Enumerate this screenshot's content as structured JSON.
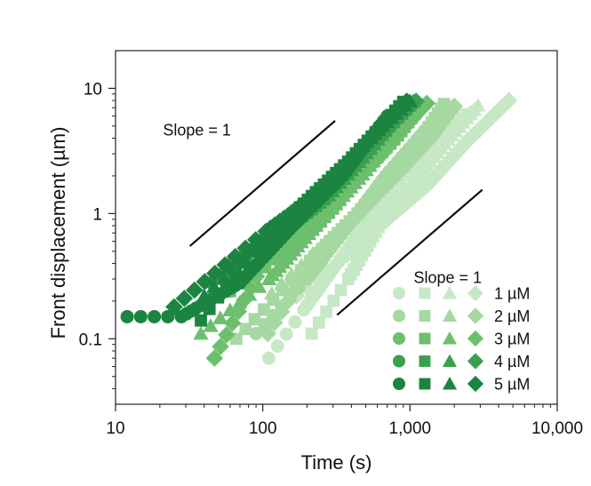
{
  "chart_data": {
    "type": "scatter",
    "xscale": "log",
    "yscale": "log",
    "xlim": [
      10,
      10000
    ],
    "ylim": [
      0.03,
      20
    ],
    "xlabel": "Time (s)",
    "ylabel": "Front displacement (µm)",
    "xticks": [
      {
        "value": 10,
        "label": "10"
      },
      {
        "value": 100,
        "label": "100"
      },
      {
        "value": 1000,
        "label": "1,000"
      },
      {
        "value": 10000,
        "label": "10,000"
      }
    ],
    "yticks": [
      {
        "value": 0.1,
        "label": "0.1"
      },
      {
        "value": 1,
        "label": "1"
      },
      {
        "value": 10,
        "label": "10"
      }
    ],
    "annotations": [
      {
        "text": "Slope = 1",
        "x": 21,
        "y": 4.2
      },
      {
        "text": "Slope = 1",
        "x": 1060,
        "y": 0.28
      }
    ],
    "reference_lines": [
      {
        "x": [
          32,
          310
        ],
        "y": [
          0.55,
          5.5
        ]
      },
      {
        "x": [
          320,
          3100
        ],
        "y": [
          0.155,
          1.55
        ]
      }
    ],
    "legend_position": "bottom-right",
    "marker_types": [
      "circle",
      "square",
      "triangle",
      "diamond"
    ],
    "series": [
      {
        "name": "1 µM",
        "color": "#c7e8c4",
        "circle": {
          "x": [
            110,
            190,
            450,
            860,
            1620,
            2680
          ],
          "y": [
            0.07,
            0.17,
            0.7,
            1.9,
            3.8,
            6.5
          ]
        },
        "square": {
          "x": [
            215,
            380,
            640,
            1050,
            1520,
            2400
          ],
          "y": [
            0.11,
            0.3,
            0.85,
            1.7,
            3.2,
            6.2
          ]
        },
        "triangle": {
          "x": [
            160,
            320,
            590,
            1050,
            1720,
            2900
          ],
          "y": [
            0.25,
            0.42,
            0.85,
            1.75,
            3.6,
            7.3
          ]
        },
        "diamond": {
          "x": [
            170,
            380,
            700,
            1320,
            2400,
            4700
          ],
          "y": [
            0.22,
            0.48,
            0.9,
            1.7,
            3.7,
            8.0
          ]
        }
      },
      {
        "name": "2 µM",
        "color": "#a6d8a1",
        "circle": {
          "x": [
            90,
            200,
            380,
            680,
            1050,
            1680
          ],
          "y": [
            0.11,
            0.3,
            0.8,
            2.0,
            3.6,
            6.8
          ]
        },
        "square": {
          "x": [
            66,
            210,
            440,
            760,
            1160,
            1700
          ],
          "y": [
            0.1,
            0.42,
            1.0,
            2.1,
            3.8,
            7.5
          ]
        },
        "triangle": {
          "x": [
            115,
            250,
            500,
            880,
            1300,
            1900
          ],
          "y": [
            0.23,
            0.55,
            1.2,
            2.4,
            4.2,
            7.0
          ]
        },
        "diamond": {
          "x": [
            108,
            230,
            480,
            860,
            1380,
            2000
          ],
          "y": [
            0.11,
            0.45,
            1.1,
            2.2,
            4.0,
            7.2
          ]
        }
      },
      {
        "name": "3 µM",
        "color": "#6dbf6e",
        "circle": {
          "x": [
            60,
            120,
            240,
            420,
            700,
            1100
          ],
          "y": [
            0.24,
            0.45,
            0.9,
            2.0,
            3.8,
            7.0
          ]
        },
        "square": {
          "x": [
            60,
            150,
            300,
            520,
            830,
            1200
          ],
          "y": [
            0.24,
            0.5,
            1.1,
            2.4,
            4.2,
            7.4
          ]
        },
        "triangle": {
          "x": [
            38,
            110,
            230,
            450,
            750,
            1150
          ],
          "y": [
            0.11,
            0.3,
            0.8,
            1.9,
            3.9,
            7.2
          ]
        },
        "diamond": {
          "x": [
            47,
            120,
            250,
            480,
            780,
            1300
          ],
          "y": [
            0.07,
            0.6,
            1.0,
            2.1,
            4.0,
            7.6
          ]
        }
      },
      {
        "name": "4 µM",
        "color": "#3aa050",
        "circle": {
          "x": [
            45,
            100,
            220,
            380,
            600,
            900
          ],
          "y": [
            0.28,
            0.6,
            1.1,
            2.3,
            4.3,
            7.5
          ]
        },
        "square": {
          "x": [
            55,
            130,
            260,
            440,
            680,
            950
          ],
          "y": [
            0.3,
            0.7,
            1.3,
            2.7,
            4.6,
            7.7
          ]
        },
        "triangle": {
          "x": [
            65,
            140,
            280,
            480,
            720,
            1050
          ],
          "y": [
            0.38,
            0.75,
            1.4,
            2.8,
            5.0,
            7.9
          ]
        },
        "diamond": {
          "x": [
            65,
            150,
            290,
            500,
            760,
            1100
          ],
          "y": [
            0.43,
            0.8,
            1.5,
            3.0,
            5.2,
            7.9
          ]
        }
      },
      {
        "name": "5 µM",
        "color": "#1a8440",
        "circle": {
          "x": [
            12,
            28,
            70,
            160,
            350,
            700
          ],
          "y": [
            0.15,
            0.15,
            0.28,
            0.8,
            2.0,
            6.0
          ]
        },
        "square": {
          "x": [
            38,
            85,
            190,
            380,
            620,
            900
          ],
          "y": [
            0.14,
            0.5,
            1.2,
            2.6,
            4.8,
            7.8
          ]
        },
        "triangle": {
          "x": [
            40,
            100,
            220,
            400,
            650,
            1000
          ],
          "y": [
            0.22,
            0.6,
            1.3,
            2.8,
            5.0,
            7.9
          ]
        },
        "diamond": {
          "x": [
            25,
            105,
            230,
            420,
            660,
            950
          ],
          "y": [
            0.18,
            0.72,
            1.4,
            2.9,
            5.2,
            7.9
          ]
        }
      }
    ]
  }
}
